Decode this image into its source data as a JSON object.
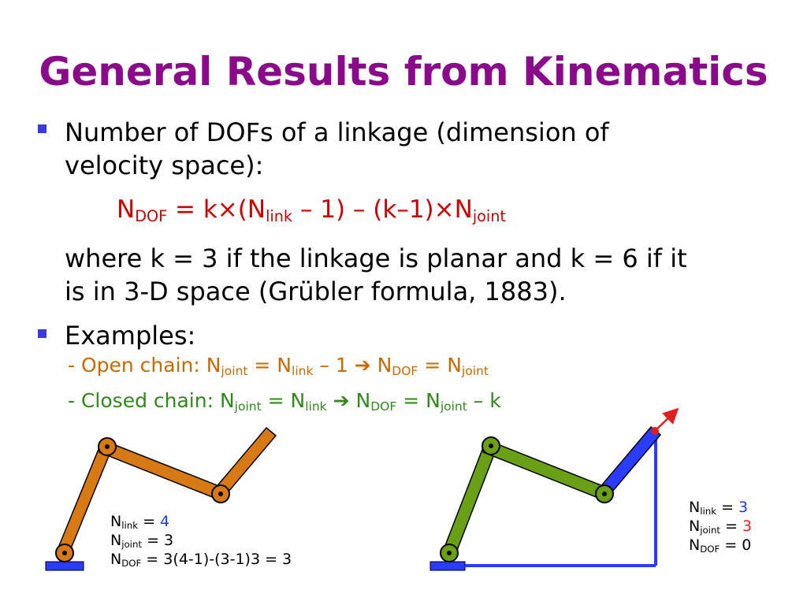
{
  "title": "General Results from Kinematics",
  "bullet1": {
    "line1": "Number of DOFs of a linkage (dimension of",
    "line2": "velocity space):",
    "formula": {
      "n": "N",
      "dof": "DOF",
      "eq": " = k",
      "times": "×",
      "open": "(N",
      "link": "link",
      "minus1": " – 1) – (k–1)",
      "times2": "×",
      "n2": "N",
      "joint": "joint"
    },
    "where1": "where k = 3 if the linkage is planar and k = 6 if it",
    "where2": "is in 3-D space (Grübler formula, 1883)."
  },
  "bullet2": {
    "label": "Examples:",
    "open_chain": {
      "prefix": "- Open chain: N",
      "joint": "joint",
      "eq1": " = N",
      "link": "link",
      "mid": " – 1 ",
      "arrow": "➔",
      "n": " N",
      "dof": "DOF",
      "eq2": " = N",
      "joint2": "joint"
    },
    "closed_chain": {
      "prefix": "- Closed chain: N",
      "joint": "joint",
      "eq1": " = N",
      "link": "link",
      "arrow": "➔",
      "n": " N",
      "dof": "DOF",
      "eq2": " = N",
      "joint2": "joint",
      "tail": " – k"
    }
  },
  "left_info": {
    "nlink_n": "N",
    "nlink_sub": "link",
    "nlink_eq": " = ",
    "nlink_val": "4",
    "njoint_n": "N",
    "njoint_sub": "joint",
    "njoint_rest": " = 3",
    "ndof_n": "N",
    "ndof_sub": "DOF",
    "ndof_rest": " = 3(4-1)-(3-1)3 = 3"
  },
  "right_info": {
    "nlink_n": "N",
    "nlink_sub": "link",
    "nlink_eq": " = ",
    "nlink_val": "3",
    "njoint_n": "N",
    "njoint_sub": "joint",
    "njoint_eq": " = ",
    "njoint_val": "3",
    "ndof_n": "N",
    "ndof_sub": "DOF",
    "ndof_rest": " = 0"
  },
  "colors": {
    "title": "#8B0A8B",
    "formula": "#cc0000",
    "open_chain": "#c86a00",
    "closed_chain": "#2f8a1a",
    "orange_link": "#d87a14",
    "green_link": "#6aa016",
    "blue_link": "#2a3cff",
    "base": "#2a3cff",
    "arrow": "#e02020"
  }
}
